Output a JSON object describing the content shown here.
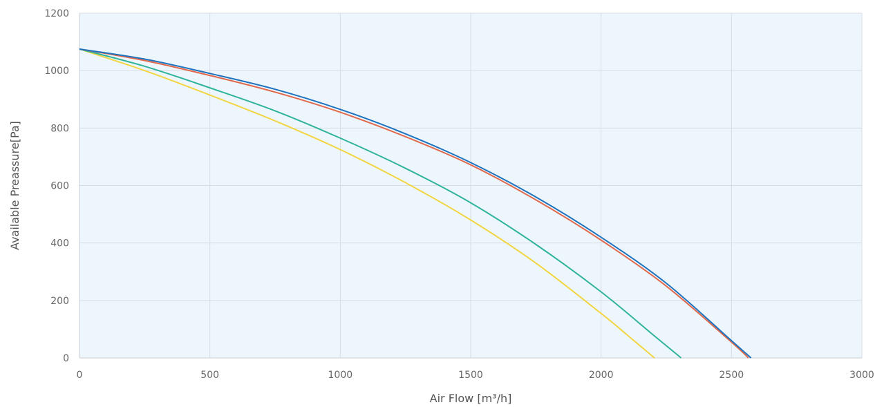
{
  "chart_data": {
    "type": "line",
    "title": "",
    "xlabel": "Air Flow [m³/h]",
    "ylabel": "Available Preassure[Pa]",
    "xlim": [
      0,
      3000
    ],
    "ylim": [
      0,
      1200
    ],
    "x_ticks": [
      0,
      500,
      1000,
      1500,
      2000,
      2500,
      3000
    ],
    "y_ticks": [
      0,
      200,
      400,
      600,
      800,
      1000,
      1200
    ],
    "grid": true,
    "plot_background": "#eef6fd",
    "series": [
      {
        "color": "#1e73be",
        "x": [
          0,
          250,
          500,
          750,
          1000,
          1250,
          1500,
          1750,
          2000,
          2250,
          2500,
          2575
        ],
        "y": [
          1075,
          1040,
          990,
          935,
          865,
          780,
          680,
          560,
          420,
          260,
          60,
          0
        ]
      },
      {
        "color": "#e0694c",
        "x": [
          0,
          250,
          500,
          750,
          1000,
          1250,
          1500,
          1750,
          2000,
          2250,
          2500,
          2565
        ],
        "y": [
          1075,
          1035,
          983,
          925,
          855,
          770,
          672,
          550,
          410,
          250,
          55,
          0
        ]
      },
      {
        "color": "#2fb39a",
        "x": [
          0,
          250,
          500,
          750,
          1000,
          1250,
          1500,
          1750,
          2000,
          2200,
          2307
        ],
        "y": [
          1075,
          1015,
          940,
          860,
          765,
          660,
          540,
          395,
          230,
          80,
          0
        ]
      },
      {
        "color": "#f2d542",
        "x": [
          0,
          250,
          500,
          750,
          1000,
          1250,
          1500,
          1750,
          2000,
          2100,
          2205
        ],
        "y": [
          1075,
          1000,
          915,
          825,
          725,
          610,
          480,
          330,
          155,
          80,
          0
        ]
      }
    ]
  }
}
